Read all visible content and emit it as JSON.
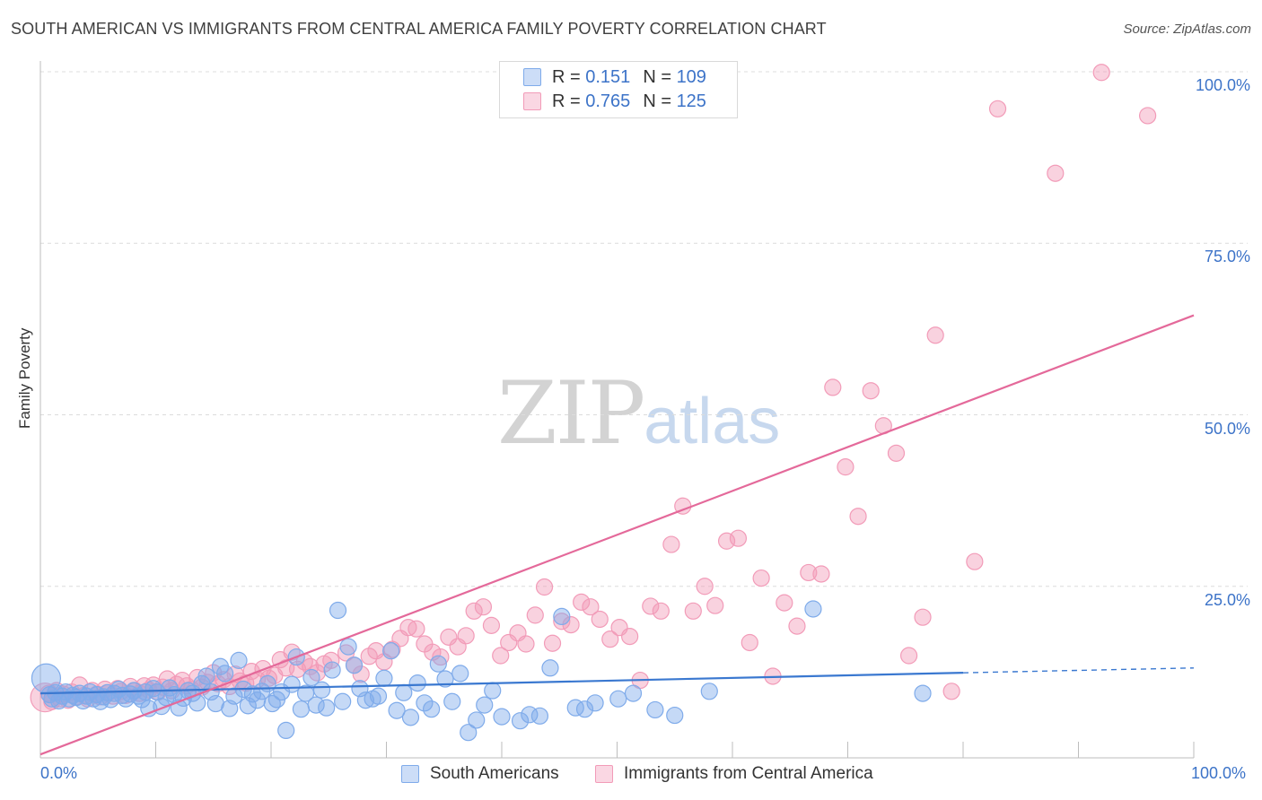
{
  "title": "SOUTH AMERICAN VS IMMIGRANTS FROM CENTRAL AMERICA FAMILY POVERTY CORRELATION CHART",
  "source": "Source: ZipAtlas.com",
  "watermark": {
    "zip": "ZIP",
    "atlas": "atlas"
  },
  "legend": {
    "rows": [
      {
        "r_label": "R = ",
        "r_value": "0.151",
        "n_label": "N = ",
        "n_value": "109",
        "color": "#7fabea"
      },
      {
        "r_label": "R = ",
        "r_value": "0.765",
        "n_label": "N = ",
        "n_value": "125",
        "color": "#f29bb8"
      }
    ]
  },
  "bottom_legend": [
    {
      "label": "South Americans",
      "color": "#7fabea"
    },
    {
      "label": "Immigrants from Central America",
      "color": "#f29bb8"
    }
  ],
  "chart_data": {
    "type": "scatter",
    "title": "SOUTH AMERICAN VS IMMIGRANTS FROM CENTRAL AMERICA FAMILY POVERTY CORRELATION CHART",
    "xlabel": "",
    "ylabel": "Family Poverty",
    "xlim": [
      0,
      100
    ],
    "ylim": [
      0,
      100
    ],
    "x_tick_labels": [
      "0.0%",
      "100.0%"
    ],
    "y_tick_labels": [
      "100.0%",
      "75.0%",
      "50.0%",
      "25.0%"
    ],
    "y_ticks": [
      100,
      75,
      50,
      25
    ],
    "grid": true,
    "legend_position": "top-center",
    "series": [
      {
        "name": "South Americans",
        "color": "#7fabea",
        "line_color": "#3a78d0",
        "trend": {
          "x": [
            0,
            80
          ],
          "y": [
            9.4,
            12.4
          ],
          "dashed_to": [
            100,
            13.1
          ]
        },
        "points": [
          [
            0.5,
            11.6
          ],
          [
            0.8,
            9.2
          ],
          [
            1.0,
            8.6
          ],
          [
            1.3,
            9.5
          ],
          [
            1.6,
            8.3
          ],
          [
            1.9,
            9.0
          ],
          [
            2.2,
            9.6
          ],
          [
            2.5,
            8.6
          ],
          [
            2.8,
            9.1
          ],
          [
            3.1,
            8.8
          ],
          [
            3.4,
            9.4
          ],
          [
            3.7,
            8.3
          ],
          [
            4.0,
            9.0
          ],
          [
            4.3,
            9.6
          ],
          [
            4.6,
            8.6
          ],
          [
            4.9,
            9.2
          ],
          [
            5.2,
            8.2
          ],
          [
            5.5,
            8.9
          ],
          [
            5.8,
            9.5
          ],
          [
            6.1,
            8.5
          ],
          [
            6.4,
            9.4
          ],
          [
            6.8,
            10.0
          ],
          [
            7.1,
            9.1
          ],
          [
            7.4,
            8.6
          ],
          [
            7.8,
            9.3
          ],
          [
            8.1,
            9.8
          ],
          [
            8.5,
            9.0
          ],
          [
            8.8,
            8.5
          ],
          [
            9.1,
            9.6
          ],
          [
            9.4,
            7.2
          ],
          [
            9.8,
            10.1
          ],
          [
            10.1,
            9.6
          ],
          [
            10.5,
            7.5
          ],
          [
            10.9,
            8.8
          ],
          [
            11.2,
            10.2
          ],
          [
            11.6,
            9.2
          ],
          [
            12.0,
            7.3
          ],
          [
            12.4,
            8.7
          ],
          [
            12.8,
            9.8
          ],
          [
            13.2,
            9.4
          ],
          [
            13.6,
            8.0
          ],
          [
            14.0,
            10.8
          ],
          [
            14.4,
            11.9
          ],
          [
            14.8,
            9.6
          ],
          [
            15.2,
            7.9
          ],
          [
            15.6,
            13.3
          ],
          [
            16.0,
            12.3
          ],
          [
            16.4,
            7.2
          ],
          [
            16.8,
            9.0
          ],
          [
            17.2,
            14.2
          ],
          [
            17.6,
            10.0
          ],
          [
            18.0,
            7.6
          ],
          [
            18.4,
            9.3
          ],
          [
            18.8,
            8.4
          ],
          [
            19.2,
            9.7
          ],
          [
            19.7,
            10.8
          ],
          [
            20.1,
            7.9
          ],
          [
            20.5,
            8.5
          ],
          [
            20.9,
            9.6
          ],
          [
            21.3,
            4.0
          ],
          [
            21.8,
            10.7
          ],
          [
            22.2,
            14.7
          ],
          [
            22.6,
            7.1
          ],
          [
            23.0,
            9.4
          ],
          [
            23.5,
            11.7
          ],
          [
            23.9,
            7.7
          ],
          [
            24.4,
            9.9
          ],
          [
            24.8,
            7.3
          ],
          [
            25.3,
            12.8
          ],
          [
            25.8,
            21.5
          ],
          [
            26.2,
            8.2
          ],
          [
            26.7,
            16.2
          ],
          [
            27.2,
            13.5
          ],
          [
            27.7,
            10.1
          ],
          [
            28.2,
            8.4
          ],
          [
            28.8,
            8.6
          ],
          [
            29.3,
            9.0
          ],
          [
            29.8,
            11.6
          ],
          [
            30.4,
            15.6
          ],
          [
            30.9,
            6.9
          ],
          [
            31.5,
            9.5
          ],
          [
            32.1,
            5.9
          ],
          [
            32.7,
            10.9
          ],
          [
            33.3,
            8.0
          ],
          [
            33.9,
            7.1
          ],
          [
            34.5,
            13.7
          ],
          [
            35.1,
            11.5
          ],
          [
            35.7,
            8.2
          ],
          [
            36.4,
            12.3
          ],
          [
            37.1,
            3.7
          ],
          [
            37.8,
            5.5
          ],
          [
            38.5,
            7.7
          ],
          [
            39.2,
            9.8
          ],
          [
            40.0,
            6.0
          ],
          [
            41.6,
            5.4
          ],
          [
            42.4,
            6.3
          ],
          [
            43.3,
            6.1
          ],
          [
            44.2,
            13.1
          ],
          [
            45.2,
            20.6
          ],
          [
            46.4,
            7.3
          ],
          [
            47.2,
            7.1
          ],
          [
            48.1,
            8.0
          ],
          [
            50.1,
            8.6
          ],
          [
            51.4,
            9.4
          ],
          [
            53.3,
            7.0
          ],
          [
            55.0,
            6.2
          ],
          [
            58.0,
            9.7
          ],
          [
            67.0,
            21.7
          ],
          [
            76.5,
            9.4
          ]
        ]
      },
      {
        "name": "Immigrants from Central America",
        "color": "#f29bb8",
        "line_color": "#e4699a",
        "trend": {
          "x": [
            0,
            100
          ],
          "y": [
            0.5,
            64.5
          ]
        },
        "points": [
          [
            0.4,
            8.8
          ],
          [
            0.7,
            9.4
          ],
          [
            1.0,
            8.2
          ],
          [
            1.4,
            9.8
          ],
          [
            1.7,
            8.6
          ],
          [
            2.0,
            9.3
          ],
          [
            2.4,
            8.4
          ],
          [
            2.7,
            9.6
          ],
          [
            3.1,
            8.9
          ],
          [
            3.4,
            10.6
          ],
          [
            3.8,
            9.1
          ],
          [
            4.1,
            8.6
          ],
          [
            4.5,
            9.8
          ],
          [
            4.9,
            9.3
          ],
          [
            5.2,
            8.9
          ],
          [
            5.6,
            10.0
          ],
          [
            5.9,
            9.5
          ],
          [
            6.3,
            9.0
          ],
          [
            6.7,
            10.1
          ],
          [
            7.0,
            9.7
          ],
          [
            7.4,
            9.1
          ],
          [
            7.8,
            10.4
          ],
          [
            8.2,
            9.8
          ],
          [
            8.6,
            9.4
          ],
          [
            9.0,
            10.5
          ],
          [
            9.4,
            9.9
          ],
          [
            9.8,
            10.6
          ],
          [
            10.2,
            9.6
          ],
          [
            10.6,
            10.3
          ],
          [
            11.0,
            11.5
          ],
          [
            11.4,
            9.8
          ],
          [
            11.8,
            10.7
          ],
          [
            12.3,
            11.3
          ],
          [
            12.7,
            10.5
          ],
          [
            13.1,
            10.0
          ],
          [
            13.6,
            11.7
          ],
          [
            14.0,
            10.3
          ],
          [
            14.5,
            11.0
          ],
          [
            15.0,
            12.4
          ],
          [
            15.4,
            10.8
          ],
          [
            15.9,
            11.4
          ],
          [
            16.4,
            10.4
          ],
          [
            16.9,
            12.2
          ],
          [
            17.3,
            11.2
          ],
          [
            17.8,
            10.9
          ],
          [
            18.3,
            12.6
          ],
          [
            18.8,
            11.4
          ],
          [
            19.3,
            13.0
          ],
          [
            19.8,
            11.6
          ],
          [
            20.3,
            12.0
          ],
          [
            20.8,
            14.3
          ],
          [
            21.3,
            13.1
          ],
          [
            21.8,
            15.4
          ],
          [
            22.3,
            12.9
          ],
          [
            22.9,
            14.0
          ],
          [
            23.4,
            13.3
          ],
          [
            24.0,
            12.4
          ],
          [
            24.6,
            13.7
          ],
          [
            25.2,
            14.2
          ],
          [
            26.5,
            15.3
          ],
          [
            27.2,
            13.5
          ],
          [
            27.8,
            12.2
          ],
          [
            28.5,
            14.8
          ],
          [
            29.1,
            15.6
          ],
          [
            29.8,
            14.0
          ],
          [
            30.5,
            15.8
          ],
          [
            31.2,
            17.4
          ],
          [
            31.9,
            19.0
          ],
          [
            32.6,
            18.8
          ],
          [
            33.3,
            16.6
          ],
          [
            34.0,
            15.4
          ],
          [
            34.7,
            14.7
          ],
          [
            35.4,
            17.6
          ],
          [
            36.2,
            16.2
          ],
          [
            36.9,
            17.8
          ],
          [
            37.6,
            21.4
          ],
          [
            38.4,
            22.0
          ],
          [
            39.1,
            19.3
          ],
          [
            39.9,
            14.9
          ],
          [
            40.6,
            16.8
          ],
          [
            41.4,
            18.2
          ],
          [
            42.1,
            16.6
          ],
          [
            42.9,
            20.8
          ],
          [
            43.7,
            24.9
          ],
          [
            44.4,
            16.7
          ],
          [
            45.2,
            19.9
          ],
          [
            46.0,
            19.4
          ],
          [
            46.9,
            22.7
          ],
          [
            47.7,
            22.0
          ],
          [
            48.5,
            20.2
          ],
          [
            49.4,
            17.3
          ],
          [
            50.2,
            19.0
          ],
          [
            51.1,
            17.7
          ],
          [
            52.0,
            11.3
          ],
          [
            52.9,
            22.1
          ],
          [
            53.8,
            21.4
          ],
          [
            54.7,
            31.1
          ],
          [
            55.7,
            36.7
          ],
          [
            56.6,
            21.4
          ],
          [
            57.6,
            25.0
          ],
          [
            58.5,
            22.2
          ],
          [
            59.5,
            31.6
          ],
          [
            60.5,
            32.0
          ],
          [
            61.5,
            16.8
          ],
          [
            62.5,
            26.2
          ],
          [
            63.5,
            11.9
          ],
          [
            64.5,
            22.6
          ],
          [
            65.6,
            19.2
          ],
          [
            66.6,
            27.0
          ],
          [
            67.7,
            26.8
          ],
          [
            68.7,
            54.0
          ],
          [
            69.8,
            42.4
          ],
          [
            70.9,
            35.2
          ],
          [
            72.0,
            53.5
          ],
          [
            73.1,
            48.4
          ],
          [
            74.2,
            44.4
          ],
          [
            75.3,
            14.9
          ],
          [
            76.5,
            20.5
          ],
          [
            77.6,
            61.6
          ],
          [
            79.0,
            9.7
          ],
          [
            81.0,
            28.6
          ],
          [
            83.0,
            94.6
          ],
          [
            88.0,
            85.2
          ],
          [
            92.0,
            99.9
          ],
          [
            96.0,
            93.6
          ]
        ]
      }
    ]
  }
}
